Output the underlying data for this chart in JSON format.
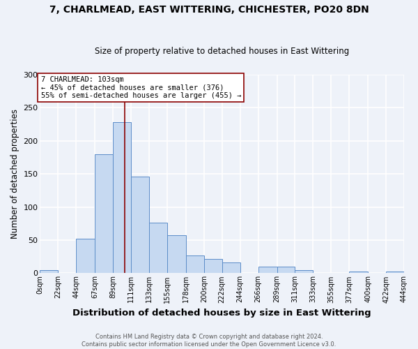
{
  "title": "7, CHARLMEAD, EAST WITTERING, CHICHESTER, PO20 8DN",
  "subtitle": "Size of property relative to detached houses in East Wittering",
  "xlabel": "Distribution of detached houses by size in East Wittering",
  "ylabel": "Number of detached properties",
  "bin_edges": [
    0,
    22,
    44,
    67,
    89,
    111,
    133,
    155,
    178,
    200,
    222,
    244,
    266,
    289,
    311,
    333,
    355,
    377,
    400,
    422,
    444
  ],
  "bar_heights": [
    5,
    0,
    52,
    180,
    228,
    146,
    76,
    57,
    27,
    22,
    16,
    0,
    10,
    10,
    5,
    0,
    0,
    2,
    0,
    2
  ],
  "bar_color": "#c6d9f1",
  "bar_edge_color": "#5b8cc8",
  "property_line_x": 103,
  "property_line_color": "#8b0000",
  "box_text_line1": "7 CHARLMEAD: 103sqm",
  "box_text_line2": "← 45% of detached houses are smaller (376)",
  "box_text_line3": "55% of semi-detached houses are larger (455) →",
  "box_color": "white",
  "box_edge_color": "#8b0000",
  "ylim": [
    0,
    300
  ],
  "tick_labels": [
    "0sqm",
    "22sqm",
    "44sqm",
    "67sqm",
    "89sqm",
    "111sqm",
    "133sqm",
    "155sqm",
    "178sqm",
    "200sqm",
    "222sqm",
    "244sqm",
    "266sqm",
    "289sqm",
    "311sqm",
    "333sqm",
    "355sqm",
    "377sqm",
    "400sqm",
    "422sqm",
    "444sqm"
  ],
  "footer_line1": "Contains HM Land Registry data © Crown copyright and database right 2024.",
  "footer_line2": "Contains public sector information licensed under the Open Government Licence v3.0.",
  "background_color": "#eef2f9",
  "grid_color": "white",
  "yticks": [
    0,
    50,
    100,
    150,
    200,
    250,
    300
  ]
}
